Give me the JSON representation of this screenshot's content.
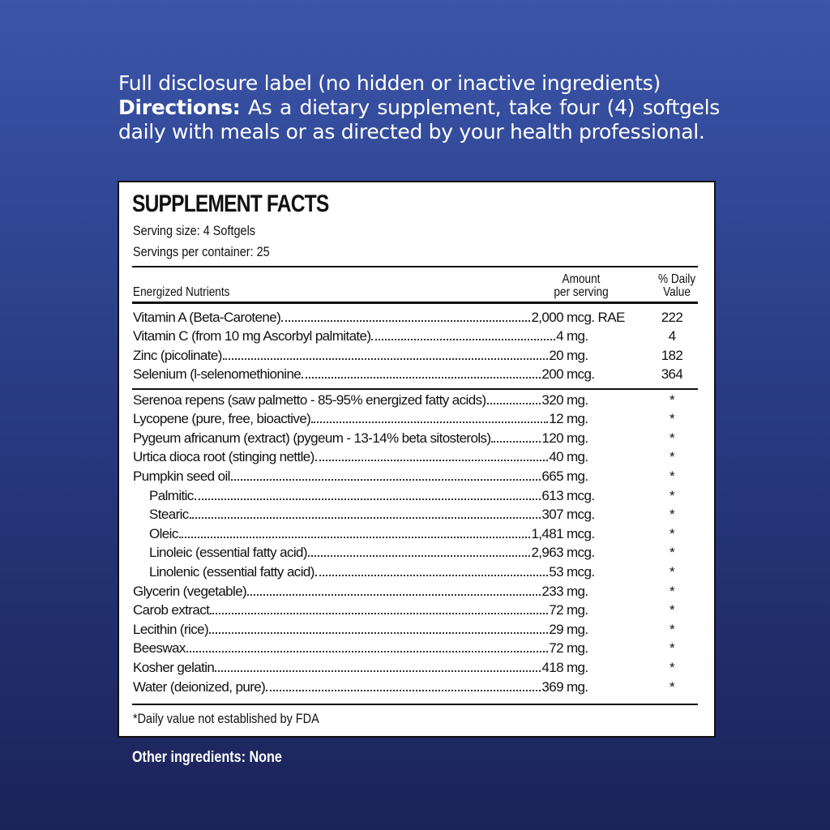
{
  "intro": {
    "line1": "Full disclosure label (no hidden or inactive ingredients)",
    "directions_label": "Directions:",
    "directions_text": " As a dietary supplement, take four (4) softgels daily with meals or as directed by your health professional."
  },
  "facts": {
    "title": "SUPPLEMENT FACTS",
    "serving_size": "Serving size: 4 Softgels",
    "servings_per_container": "Servings per container: 25",
    "col_nutrients": "Energized Nutrients",
    "col_amount_1": "Amount",
    "col_amount_2": "per serving",
    "col_dv_1": "% Daily",
    "col_dv_2": "Value",
    "vitamins": [
      {
        "name": "Vitamin A (Beta-Carotene)",
        "amount": "2,000",
        "unit": "mcg. RAE",
        "dv": "222"
      },
      {
        "name": "Vitamin C (from 10 mg Ascorbyl palmitate)",
        "amount": "4",
        "unit": "mg.",
        "dv": "4"
      },
      {
        "name": "Zinc (picolinate)",
        "amount": "20",
        "unit": "mg.",
        "dv": "182"
      },
      {
        "name": "Selenium (l-selenomethionine",
        "amount": "200",
        "unit": "mcg.",
        "dv": "364"
      }
    ],
    "others": [
      {
        "name": "Serenoa repens (saw palmetto - 85-95% energized fatty acids)",
        "amount": "320",
        "unit": "mg.",
        "dv": "*"
      },
      {
        "name": "Lycopene (pure, free, bioactive)",
        "amount": "12",
        "unit": "mg.",
        "dv": "*"
      },
      {
        "name": "Pygeum africanum (extract) (pygeum - 13-14% beta sitosterols)",
        "amount": "120",
        "unit": "mg.",
        "dv": "*"
      },
      {
        "name": "Urtica dioca root (stinging nettle)",
        "amount": "40",
        "unit": "mg.",
        "dv": "*"
      },
      {
        "name": "Pumpkin seed oil",
        "amount": "665",
        "unit": "mg.",
        "dv": "*"
      },
      {
        "name": "Palmitic",
        "amount": "613",
        "unit": "mcg.",
        "dv": "*",
        "sub": true
      },
      {
        "name": "Stearic",
        "amount": "307",
        "unit": "mcg.",
        "dv": "*",
        "sub": true
      },
      {
        "name": "Oleic",
        "amount": "1,481",
        "unit": "mcg.",
        "dv": "*",
        "sub": true
      },
      {
        "name": "Linoleic (essential fatty acid)",
        "amount": "2,963",
        "unit": "mcg.",
        "dv": "*",
        "sub": true
      },
      {
        "name": "Linolenic (essential fatty acid)",
        "amount": "53",
        "unit": "mcg.",
        "dv": "*",
        "sub": true
      },
      {
        "name": "Glycerin (vegetable)",
        "amount": "233",
        "unit": "mg.",
        "dv": "*"
      },
      {
        "name": "Carob extract",
        "amount": "72",
        "unit": "mg.",
        "dv": "*"
      },
      {
        "name": "Lecithin (rice)",
        "amount": "29",
        "unit": "mg.",
        "dv": "*"
      },
      {
        "name": "Beeswax",
        "amount": "72",
        "unit": "mg.",
        "dv": "*"
      },
      {
        "name": "Kosher gelatin",
        "amount": "418",
        "unit": "mg.",
        "dv": "*"
      },
      {
        "name": "Water (deionized, pure)",
        "amount": "369",
        "unit": "mg.",
        "dv": "*"
      }
    ],
    "footnote": "*Daily value not established by FDA"
  },
  "other_ingredients": "Other ingredients: None",
  "colors": {
    "background_top": "#3a55a9",
    "background_bottom": "#1b2358",
    "panel": "#ffffff"
  }
}
